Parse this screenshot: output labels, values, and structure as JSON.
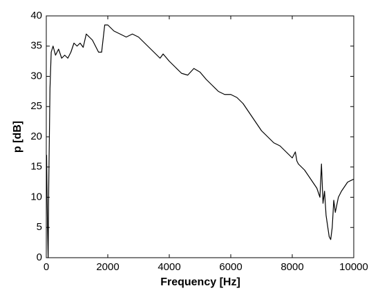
{
  "chart_data": {
    "type": "line",
    "x_label": "Frequency [Hz]",
    "y_label": "p [dB]",
    "x": [
      10,
      40,
      60,
      80,
      120,
      160,
      220,
      300,
      400,
      500,
      600,
      700,
      800,
      900,
      1000,
      1100,
      1200,
      1300,
      1400,
      1500,
      1600,
      1700,
      1800,
      1900,
      2000,
      2200,
      2400,
      2600,
      2800,
      3000,
      3200,
      3400,
      3600,
      3700,
      3800,
      4000,
      4200,
      4400,
      4600,
      4800,
      5000,
      5200,
      5400,
      5600,
      5800,
      6000,
      6200,
      6400,
      6600,
      6800,
      7000,
      7200,
      7400,
      7600,
      7800,
      8000,
      8100,
      8150,
      8200,
      8400,
      8600,
      8800,
      8900,
      8950,
      9000,
      9050,
      9100,
      9200,
      9250,
      9300,
      9350,
      9400,
      9500,
      9600,
      9800,
      10000
    ],
    "values": [
      17,
      5,
      0,
      12,
      28,
      34,
      35,
      33.5,
      34.5,
      33,
      33.5,
      33,
      34,
      35.5,
      35,
      35.5,
      34.8,
      37,
      36.5,
      36,
      35,
      34,
      34,
      38.5,
      38.5,
      37.5,
      37,
      36.5,
      37,
      36.5,
      35.5,
      34.5,
      33.5,
      33,
      33.7,
      32.5,
      31.5,
      30.5,
      30.2,
      31.3,
      30.7,
      29.5,
      28.5,
      27.5,
      27,
      27,
      26.5,
      25.5,
      24,
      22.5,
      21,
      20,
      19,
      18.5,
      17.5,
      16.5,
      17.5,
      16,
      15.5,
      14.5,
      13,
      11.5,
      10,
      15.5,
      9,
      11,
      7,
      3.5,
      3,
      5,
      9.5,
      7.5,
      10,
      11,
      12.5,
      13
    ],
    "color": "#000000",
    "xlim": [
      0,
      10000
    ],
    "xticks": [
      0,
      2000,
      4000,
      6000,
      8000,
      10000
    ],
    "ylim": [
      0,
      40
    ],
    "yticks": [
      0,
      5,
      10,
      15,
      20,
      25,
      30,
      35,
      40
    ],
    "grid": false
  }
}
